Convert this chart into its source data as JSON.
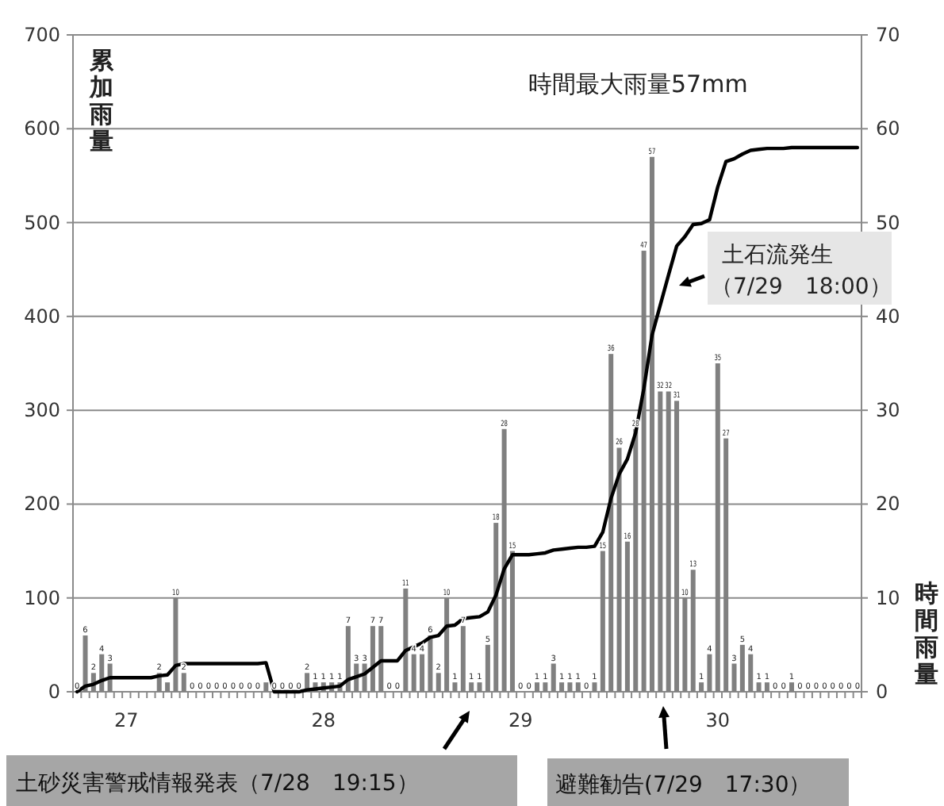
{
  "chart_data": {
    "type": "bar",
    "categories": [
      null,
      null,
      null,
      null,
      null,
      null,
      "27",
      null,
      null,
      null,
      null,
      null,
      null,
      null,
      null,
      null,
      null,
      null,
      null,
      null,
      null,
      null,
      null,
      null,
      null,
      null,
      null,
      null,
      null,
      null,
      "28",
      null,
      null,
      null,
      null,
      null,
      null,
      null,
      null,
      null,
      null,
      null,
      null,
      null,
      null,
      null,
      null,
      null,
      null,
      null,
      null,
      null,
      null,
      null,
      "29",
      null,
      null,
      null,
      null,
      null,
      null,
      null,
      null,
      null,
      null,
      null,
      null,
      null,
      null,
      null,
      null,
      null,
      null,
      null,
      null,
      null,
      null,
      null,
      "30",
      null,
      null,
      null,
      null,
      null,
      null,
      null,
      null,
      null,
      null,
      null,
      null,
      null,
      null,
      null,
      null,
      null
    ],
    "series": [
      {
        "axis": "y2",
        "color": "#808080",
        "values": [
          0,
          6,
          2,
          4,
          3,
          null,
          null,
          null,
          null,
          null,
          2,
          1,
          10,
          2,
          0,
          0,
          0,
          0,
          0,
          0,
          0,
          0,
          0,
          1,
          0,
          0,
          0,
          0,
          2,
          1,
          1,
          1,
          1,
          7,
          3,
          3,
          7,
          7,
          0,
          0,
          11,
          4,
          4,
          6,
          2,
          10,
          1,
          7,
          1,
          1,
          5,
          18,
          28,
          15,
          0,
          0,
          1,
          1,
          3,
          1,
          1,
          1,
          0,
          1,
          15,
          36,
          26,
          16,
          28,
          47,
          57,
          32,
          32,
          31,
          10,
          13,
          1,
          4,
          35,
          27,
          3,
          5,
          4,
          1,
          1,
          0,
          0,
          1,
          0,
          0,
          0,
          0,
          0,
          0,
          0,
          0
        ],
        "value_labels": [
          "0",
          "6",
          "2",
          "4",
          "3",
          null,
          null,
          null,
          null,
          null,
          "2",
          null,
          "10",
          "2",
          "0",
          "0",
          "0",
          "0",
          "0",
          "0",
          "0",
          "0",
          "0",
          null,
          "0",
          "0",
          "0",
          "0",
          "2",
          "1",
          "1",
          "1",
          "1",
          "7",
          "3",
          "3",
          "7",
          "7",
          "0",
          "0",
          "11",
          "4",
          "4",
          "6",
          "2",
          "10",
          "1",
          "7",
          "1",
          "1",
          "5",
          "18",
          "28",
          "15",
          "0",
          "0",
          "1",
          "1",
          "3",
          "1",
          "1",
          "1",
          "0",
          "1",
          "15",
          "36",
          "26",
          "16",
          "28",
          "47",
          "57",
          "32",
          "32",
          "31",
          "10",
          "13",
          "1",
          "4",
          "35",
          "27",
          "3",
          "5",
          "4",
          "1",
          "1",
          "0",
          "0",
          "1",
          "0",
          "0",
          "0",
          "0",
          "0",
          "0",
          "0",
          "0"
        ]
      },
      {
        "type": "line",
        "color": "#000000",
        "values": [
          0,
          6,
          8,
          12,
          15,
          15,
          15,
          15,
          15,
          15,
          17,
          18,
          28,
          30,
          30,
          30,
          30,
          30,
          30,
          30,
          30,
          30,
          30,
          31,
          0,
          0,
          0,
          0,
          2,
          3,
          4,
          5,
          6,
          13,
          16,
          19,
          26,
          33,
          33,
          33,
          44,
          48,
          52,
          58,
          60,
          70,
          71,
          78,
          79,
          80,
          85,
          103,
          131,
          146,
          146,
          146,
          147,
          148,
          151,
          152,
          153,
          154,
          154,
          155,
          170,
          206,
          232,
          248,
          276,
          323,
          380,
          412,
          444,
          475,
          485,
          498,
          499,
          503,
          538,
          565,
          568,
          573,
          577,
          578,
          579,
          579,
          579,
          580,
          580,
          580,
          580,
          580,
          580,
          580,
          580,
          580
        ]
      }
    ],
    "ylim": [
      0,
      700
    ],
    "yticks": [
      0,
      100,
      200,
      300,
      400,
      500,
      600,
      700
    ],
    "y2lim": [
      0,
      70
    ],
    "y2ticks": [
      0,
      10,
      20,
      30,
      40,
      50,
      60,
      70
    ],
    "ylabel": "累加雨量",
    "y2label": "時間雨量",
    "grid": "y",
    "annotations": [
      "時間最大雨量57mm",
      "土石流発生",
      "（7/29　18:00）",
      "土砂災害警戒情報発表（7/28　19:15）",
      "避難勧告(7/29　17:30）"
    ]
  }
}
